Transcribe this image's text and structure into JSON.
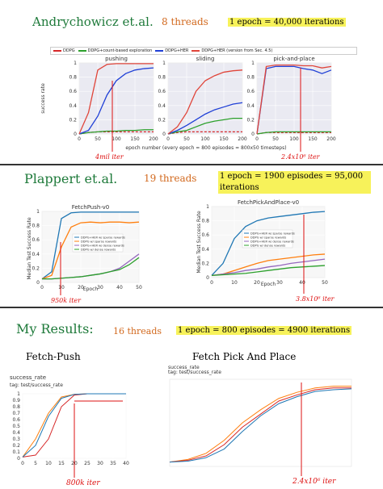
{
  "section1": {
    "author": "Andrychowicz et.al.",
    "threads": "8 threads",
    "epoch_note": "1 epoch = 40,000 iterations",
    "annotation_push": "4mil iter",
    "annotation_pick": "2.4x10⁶ iter"
  },
  "section2": {
    "author": "Plappert et.al.",
    "threads": "19 threads",
    "epoch_note": "1 epoch = 1900 episodes = 95,000 iterations",
    "annotation_push": "950k iter",
    "annotation_pick": "3.8x10⁶ iter"
  },
  "section3": {
    "title": "My Results:",
    "threads": "16 threads",
    "epoch_note": "1 epoch = 800 episodes = 4900 iterations",
    "label_push": "Fetch-Push",
    "label_pick": "Fetch Pick And Place",
    "annotation_push": "800k iter",
    "annotation_pick": "2.4x10⁶ iter"
  },
  "colors": {
    "ddpg": "#d62728",
    "ddpg_count": "#2ca02c",
    "ddpg_her": "#1f3fd6",
    "ddpg_her_v45": "#e0453a",
    "orange": "#ff7f0e",
    "blue": "#1f77b4",
    "purple": "#9467bd"
  },
  "chart_data": [
    {
      "type": "line",
      "legend": [
        "DDPG",
        "DDPG+count-based exploration",
        "DDPG+HER",
        "DDPG+HER (version from Sec. 4.5)"
      ],
      "xlabel": "epoch number (every epoch = 800 episodes = 800x50 timesteps)",
      "ylabel": "success rate",
      "panels": [
        {
          "title": "pushing",
          "x": [
            0,
            25,
            50,
            75,
            100,
            125,
            150,
            175,
            200
          ],
          "series": [
            {
              "name": "DDPG",
              "values": [
                0,
                0.02,
                0.03,
                0.03,
                0.03,
                0.03,
                0.03,
                0.03,
                0.03
              ]
            },
            {
              "name": "DDPG+count-based exploration",
              "values": [
                0,
                0.02,
                0.03,
                0.04,
                0.04,
                0.05,
                0.05,
                0.06,
                0.06
              ]
            },
            {
              "name": "DDPG+HER",
              "values": [
                0,
                0.05,
                0.25,
                0.55,
                0.75,
                0.85,
                0.9,
                0.92,
                0.93
              ]
            },
            {
              "name": "DDPG+HER (version from Sec. 4.5)",
              "values": [
                0,
                0.3,
                0.9,
                0.98,
                0.99,
                0.99,
                0.99,
                0.99,
                0.99
              ]
            }
          ]
        },
        {
          "title": "sliding",
          "x": [
            0,
            25,
            50,
            75,
            100,
            125,
            150,
            175,
            200
          ],
          "series": [
            {
              "name": "DDPG",
              "values": [
                0,
                0.02,
                0.03,
                0.03,
                0.03,
                0.03,
                0.03,
                0.03,
                0.03
              ]
            },
            {
              "name": "DDPG+count-based exploration",
              "values": [
                0,
                0.03,
                0.05,
                0.1,
                0.15,
                0.18,
                0.2,
                0.22,
                0.22
              ]
            },
            {
              "name": "DDPG+HER",
              "values": [
                0,
                0.05,
                0.12,
                0.2,
                0.28,
                0.34,
                0.38,
                0.42,
                0.44
              ]
            },
            {
              "name": "DDPG+HER (version from Sec. 4.5)",
              "values": [
                0,
                0.1,
                0.3,
                0.6,
                0.75,
                0.82,
                0.87,
                0.89,
                0.9
              ]
            }
          ]
        },
        {
          "title": "pick-and-place",
          "x": [
            0,
            25,
            50,
            75,
            100,
            125,
            150,
            175,
            200
          ],
          "series": [
            {
              "name": "DDPG",
              "values": [
                0,
                0.02,
                0.02,
                0.02,
                0.02,
                0.02,
                0.02,
                0.02,
                0.02
              ]
            },
            {
              "name": "DDPG+count-based exploration",
              "values": [
                0,
                0.02,
                0.03,
                0.03,
                0.03,
                0.03,
                0.03,
                0.03,
                0.03
              ]
            },
            {
              "name": "DDPG+HER",
              "values": [
                0,
                0.92,
                0.95,
                0.95,
                0.95,
                0.92,
                0.9,
                0.85,
                0.9
              ]
            },
            {
              "name": "DDPG+HER (version from Sec. 4.5)",
              "values": [
                0,
                0.95,
                0.97,
                0.97,
                0.97,
                0.96,
                0.96,
                0.93,
                0.95
              ]
            }
          ]
        }
      ],
      "xlim": [
        0,
        200
      ],
      "ylim": [
        0,
        1
      ],
      "xticks": [
        0,
        50,
        100,
        150,
        200
      ],
      "yticks": [
        0,
        0.2,
        0.4,
        0.6,
        0.8,
        1.0
      ]
    },
    {
      "type": "line",
      "title": "FetchPush-v0",
      "xlabel": "Epoch",
      "ylabel": "Median Test Success Rate",
      "legend": [
        "DDPG+HER w/ sparse rewards",
        "DDPG w/ sparse rewards",
        "DDPG+HER w/ dense rewards",
        "DDPG w/ dense rewards"
      ],
      "x": [
        0,
        5,
        10,
        15,
        20,
        25,
        30,
        35,
        40,
        45,
        50
      ],
      "series": [
        {
          "name": "DDPG+HER w/ sparse rewards",
          "values": [
            0.05,
            0.15,
            0.9,
            0.98,
            0.99,
            0.99,
            0.99,
            0.99,
            0.99,
            0.99,
            0.99
          ]
        },
        {
          "name": "DDPG w/ sparse rewards",
          "values": [
            0.05,
            0.1,
            0.5,
            0.78,
            0.84,
            0.85,
            0.84,
            0.85,
            0.85,
            0.84,
            0.85
          ]
        },
        {
          "name": "DDPG+HER w/ dense rewards",
          "values": [
            0.05,
            0.05,
            0.06,
            0.07,
            0.08,
            0.1,
            0.12,
            0.15,
            0.2,
            0.3,
            0.4
          ]
        },
        {
          "name": "DDPG w/ dense rewards",
          "values": [
            0.05,
            0.05,
            0.06,
            0.07,
            0.08,
            0.1,
            0.12,
            0.15,
            0.18,
            0.25,
            0.35
          ]
        }
      ],
      "xlim": [
        0,
        50
      ],
      "ylim": [
        0,
        1
      ],
      "xticks": [
        0,
        10,
        20,
        30,
        40,
        50
      ],
      "yticks": [
        0,
        0.2,
        0.4,
        0.6,
        0.8,
        1.0
      ]
    },
    {
      "type": "line",
      "title": "FetchPickAndPlace-v0",
      "xlabel": "Epoch",
      "ylabel": "Median Test Success Rate",
      "legend": [
        "DDPG+HER w/ sparse rewards",
        "DDPG w/ sparse rewards",
        "DDPG+HER w/ dense rewards",
        "DDPG w/ dense rewards"
      ],
      "x": [
        0,
        5,
        10,
        15,
        20,
        25,
        30,
        35,
        40,
        45,
        50
      ],
      "series": [
        {
          "name": "DDPG+HER w/ sparse rewards",
          "values": [
            0.03,
            0.2,
            0.55,
            0.72,
            0.8,
            0.84,
            0.86,
            0.88,
            0.9,
            0.92,
            0.93
          ]
        },
        {
          "name": "DDPG w/ sparse rewards",
          "values": [
            0.03,
            0.05,
            0.1,
            0.15,
            0.2,
            0.24,
            0.26,
            0.28,
            0.3,
            0.32,
            0.33
          ]
        },
        {
          "name": "DDPG+HER w/ dense rewards",
          "values": [
            0.03,
            0.05,
            0.07,
            0.1,
            0.12,
            0.15,
            0.17,
            0.2,
            0.22,
            0.24,
            0.26
          ]
        },
        {
          "name": "DDPG w/ dense rewards",
          "values": [
            0.03,
            0.04,
            0.05,
            0.06,
            0.08,
            0.1,
            0.12,
            0.14,
            0.15,
            0.16,
            0.17
          ]
        }
      ],
      "xlim": [
        0,
        50
      ],
      "ylim": [
        0,
        1
      ],
      "xticks": [
        0,
        10,
        20,
        30,
        40,
        50
      ],
      "yticks": [
        0,
        0.2,
        0.4,
        0.6,
        0.8,
        1.0
      ]
    },
    {
      "type": "line",
      "title": "success_rate",
      "subtitle": "tag: test/success_rate",
      "x": [
        0,
        5,
        10,
        15,
        20,
        25,
        30,
        35,
        40
      ],
      "series": [
        {
          "values": [
            0.02,
            0.3,
            0.7,
            0.95,
            0.99,
            1.0,
            1.0,
            1.0,
            1.0
          ]
        },
        {
          "values": [
            0.02,
            0.05,
            0.3,
            0.8,
            0.98,
            1.0,
            1.0,
            1.0,
            1.0
          ]
        },
        {
          "values": [
            0.02,
            0.2,
            0.65,
            0.93,
            0.99,
            1.0,
            1.0,
            1.0,
            1.0
          ]
        }
      ],
      "xlim": [
        0,
        40
      ],
      "ylim": [
        0,
        1
      ],
      "xticks": [
        0,
        5,
        10,
        15,
        20,
        25,
        30,
        35,
        40
      ],
      "yticks": [
        0,
        0.1,
        0.2,
        0.3,
        0.4,
        0.5,
        0.6,
        0.7,
        0.8,
        0.9,
        1
      ]
    },
    {
      "type": "line",
      "title": "success_rate",
      "subtitle": "tag: test/success_rate",
      "x": [
        0,
        50,
        100,
        150,
        200,
        250,
        300,
        350,
        400,
        450,
        500
      ],
      "series": [
        {
          "values": [
            0.05,
            0.08,
            0.15,
            0.3,
            0.5,
            0.65,
            0.78,
            0.85,
            0.9,
            0.92,
            0.92
          ]
        },
        {
          "values": [
            0.05,
            0.07,
            0.12,
            0.25,
            0.45,
            0.6,
            0.75,
            0.82,
            0.88,
            0.9,
            0.9
          ]
        },
        {
          "values": [
            0.05,
            0.06,
            0.1,
            0.2,
            0.4,
            0.58,
            0.72,
            0.8,
            0.86,
            0.88,
            0.89
          ]
        }
      ],
      "ylim": [
        0,
        1
      ]
    }
  ]
}
